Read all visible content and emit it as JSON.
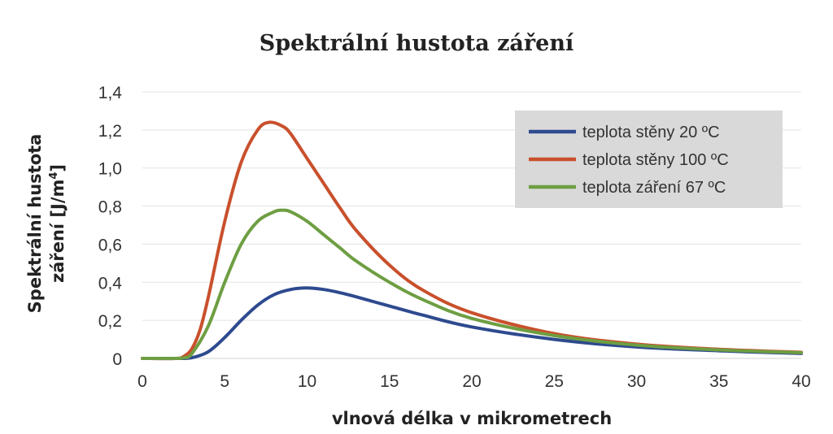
{
  "chart_data": {
    "type": "line",
    "title": "Spektrální hustota záření",
    "xlabel": "vlnová délka v mikrometrech",
    "ylabel_line1": "Spektrální hustota",
    "ylabel_line2": "záření [J/m",
    "ylabel_sup": "4",
    "ylabel_end": "]",
    "xlim": [
      0,
      40
    ],
    "ylim": [
      0,
      1.4
    ],
    "x_ticks": [
      0,
      5,
      10,
      15,
      20,
      25,
      30,
      35,
      40
    ],
    "x_tick_labels": [
      "0",
      "5",
      "10",
      "15",
      "20",
      "25",
      "30",
      "35",
      "40"
    ],
    "y_ticks": [
      0,
      0.2,
      0.4,
      0.6,
      0.8,
      1.0,
      1.2,
      1.4
    ],
    "y_tick_labels": [
      "0",
      "0,2",
      "0,4",
      "0,6",
      "0,8",
      "1,0",
      "1,2",
      "1,4"
    ],
    "grid": "horizontal",
    "legend_position": "top-right",
    "series": [
      {
        "name": "teplota stěny 20 ºC",
        "color": "#2e4a8f",
        "x": [
          0,
          2,
          3,
          4,
          5,
          6,
          7,
          8,
          9,
          10,
          11,
          12,
          13,
          15,
          17,
          20,
          25,
          30,
          35,
          40
        ],
        "y": [
          0,
          0,
          0.004,
          0.035,
          0.11,
          0.2,
          0.28,
          0.335,
          0.362,
          0.37,
          0.362,
          0.345,
          0.323,
          0.275,
          0.228,
          0.165,
          0.1,
          0.06,
          0.04,
          0.026
        ]
      },
      {
        "name": "teplota stěny 100 ºC",
        "color": "#c9502c",
        "x": [
          0,
          2,
          2.5,
          3,
          3.5,
          4,
          5,
          6,
          7,
          7.7,
          8.5,
          9,
          10,
          11,
          12,
          13,
          15,
          17,
          20,
          25,
          30,
          35,
          40
        ],
        "y": [
          0,
          0,
          0.01,
          0.05,
          0.15,
          0.32,
          0.72,
          1.03,
          1.2,
          1.24,
          1.22,
          1.18,
          1.05,
          0.92,
          0.79,
          0.67,
          0.49,
          0.36,
          0.24,
          0.13,
          0.075,
          0.048,
          0.032
        ]
      },
      {
        "name": "teplota záření 67 ºC",
        "color": "#6e9e42",
        "x": [
          0,
          2,
          2.5,
          3,
          4,
          5,
          6,
          7,
          8,
          8.5,
          9,
          10,
          11,
          12,
          13,
          15,
          17,
          20,
          25,
          30,
          35,
          40
        ],
        "y": [
          0,
          0,
          0.003,
          0.025,
          0.17,
          0.4,
          0.6,
          0.72,
          0.77,
          0.778,
          0.77,
          0.72,
          0.65,
          0.58,
          0.51,
          0.4,
          0.31,
          0.21,
          0.12,
          0.07,
          0.045,
          0.03
        ]
      }
    ]
  }
}
